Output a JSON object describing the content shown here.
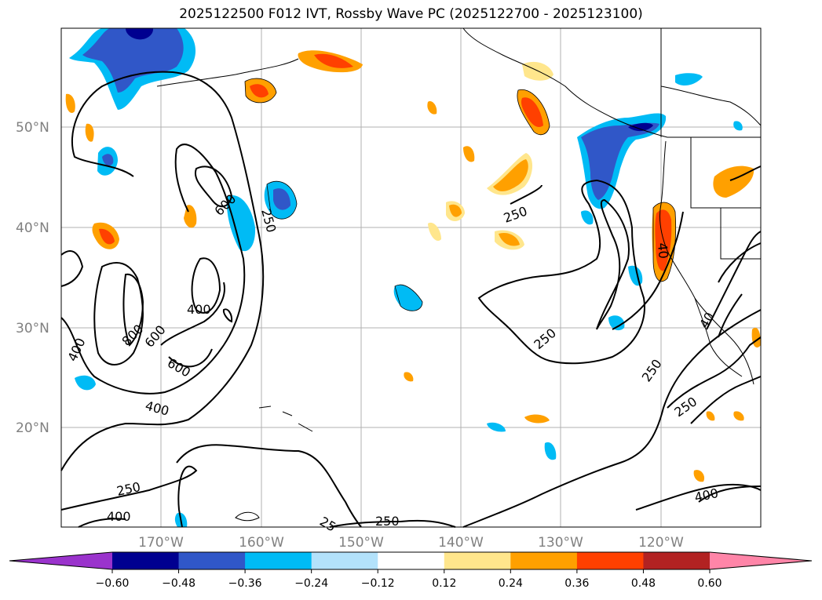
{
  "title": "2025122500 F012 IVT, Rossby Wave PC (2025122700 - 2025123100)",
  "lat_labels": [
    "50°N",
    "40°N",
    "30°N",
    "20°N"
  ],
  "lon_labels": [
    "170°W",
    "160°W",
    "150°W",
    "140°W",
    "130°W",
    "120°W"
  ],
  "contour_labels": {
    "c250a": "250",
    "c250b": "250",
    "c250c": "250",
    "c250d": "250",
    "c250e": "250",
    "c250f": "250",
    "c250g": "25",
    "c400a": "400",
    "c400b": "400",
    "c400c": "400",
    "c400d": "400",
    "c400e": "400",
    "c400f": "40",
    "c400g": "40",
    "c600a": "600",
    "c600b": "600",
    "c600c": "600",
    "c800a": "800"
  },
  "colorbar": {
    "colors": [
      "#9a33cc",
      "#000090",
      "#3057c8",
      "#00bbf5",
      "#b3e2fb",
      "#ffffff",
      "#ffe68c",
      "#ffa000",
      "#ff4000",
      "#b22222",
      "#ff85a8"
    ],
    "ticks": [
      "−0.60",
      "−0.48",
      "−0.36",
      "−0.24",
      "−0.12",
      "0.12",
      "0.24",
      "0.36",
      "0.48",
      "0.60"
    ]
  }
}
